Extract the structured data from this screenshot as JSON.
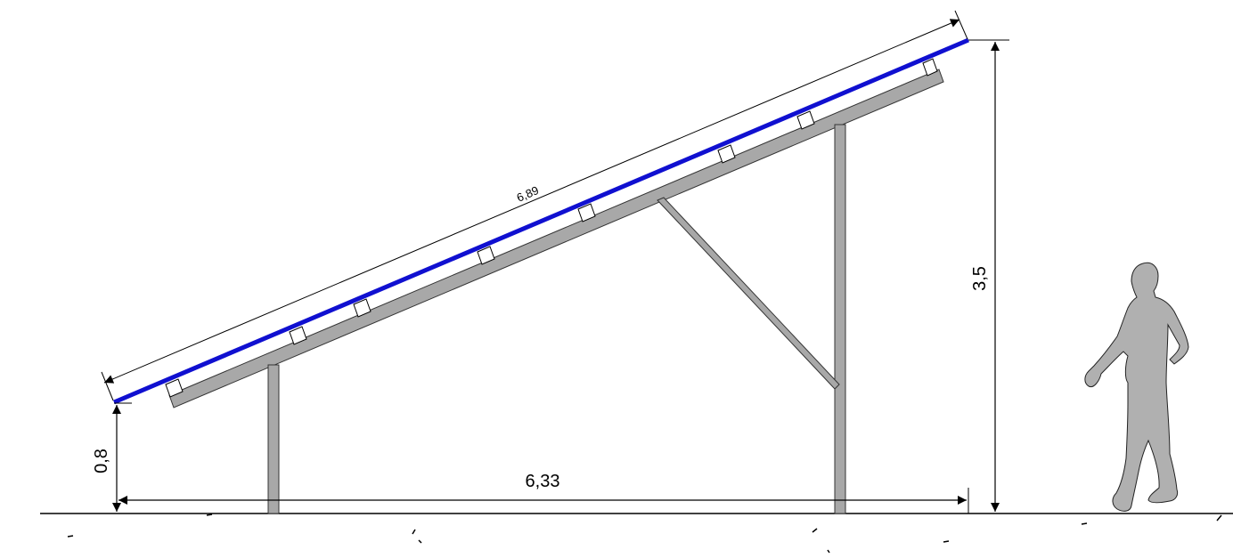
{
  "diagram": {
    "dimensions": {
      "panel_length": "6,89",
      "total_height": "3,5",
      "low_edge_height": "0,8",
      "horizontal_span": "6,33"
    },
    "colors": {
      "panel": "#1010d0",
      "structure": "#a0a0a0",
      "person": "#b0b0b0",
      "lines": "#000000"
    },
    "icons": {
      "person": "walking-person-icon"
    }
  }
}
